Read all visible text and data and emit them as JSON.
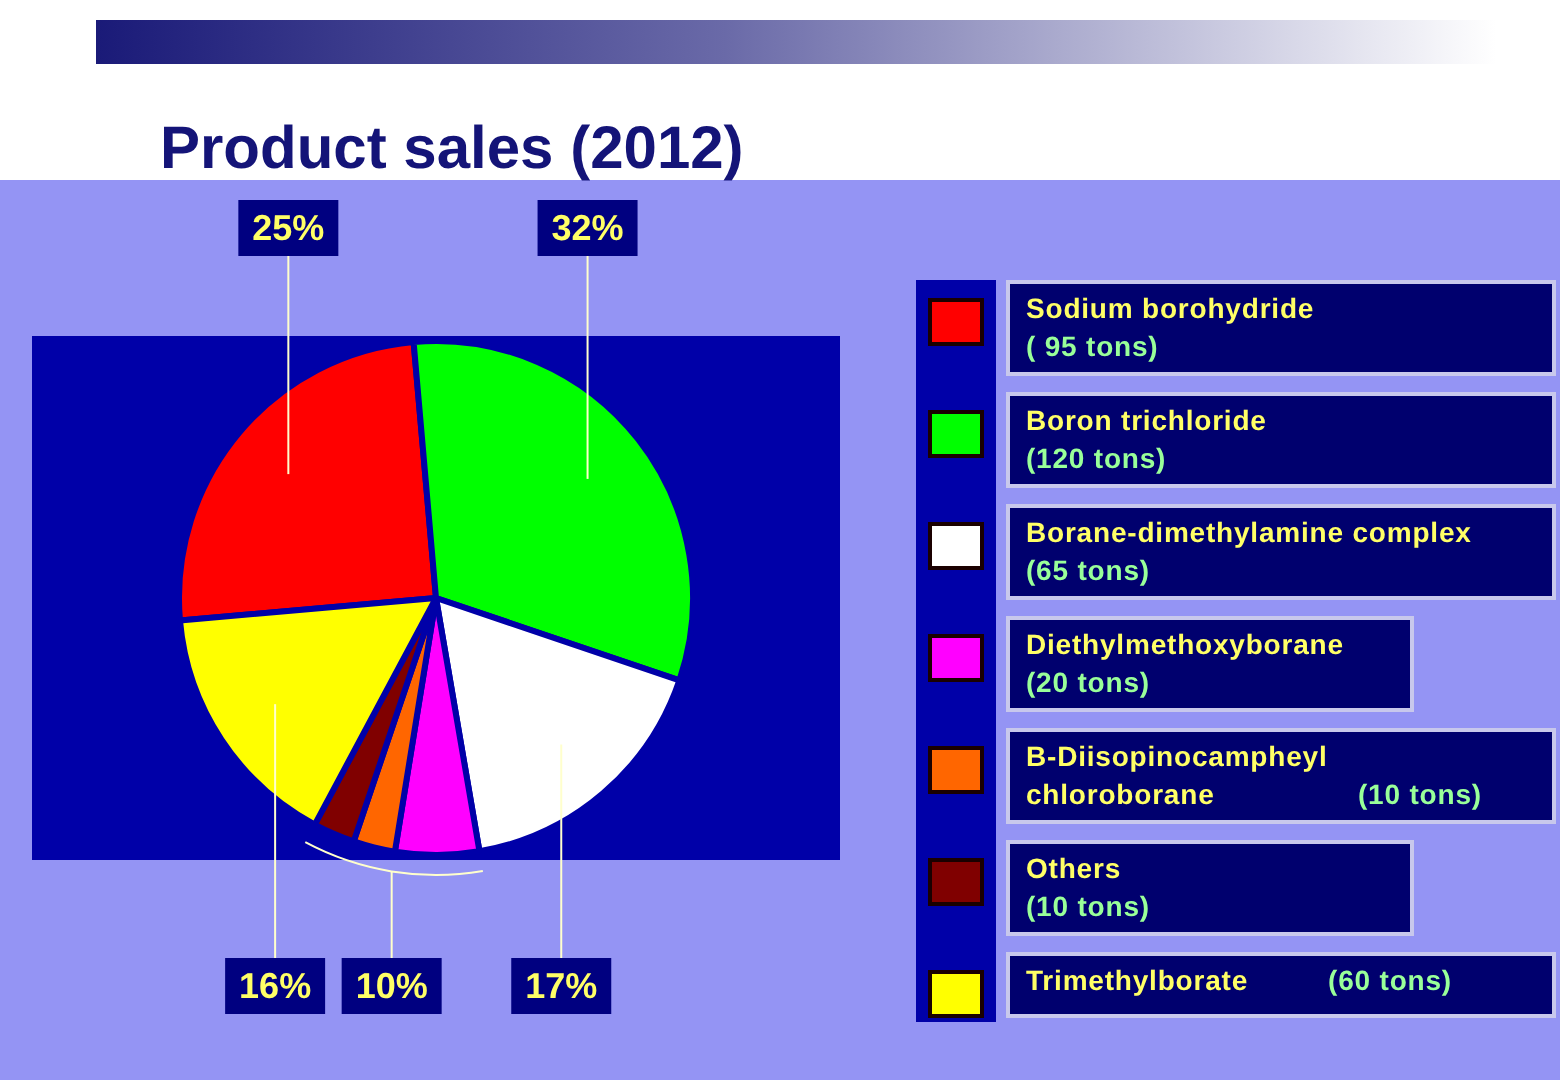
{
  "chart_data": {
    "type": "pie",
    "title": "Product sales (2012)",
    "categories": [
      "Sodium borohydride",
      "Boron trichloride",
      "Borane-dimethylamine complex",
      "Diethylmethoxyborane",
      "B-Diisopinocampheyl chloroborane",
      "Others",
      "Trimethylborate"
    ],
    "values": [
      95,
      120,
      65,
      20,
      10,
      10,
      60
    ],
    "colors": [
      "#ff0000",
      "#00ff00",
      "#ffffff",
      "#ff00ff",
      "#ff6600",
      "#800000",
      "#ffff00"
    ],
    "value_labels": [
      "( 95 tons)",
      "(120 tons)",
      "(65 tons)",
      "(20 tons)",
      "(10 tons)",
      "(10 tons)",
      "(60 tons)"
    ],
    "annotations": [
      {
        "text": "25%",
        "x": "Sodium borohydride"
      },
      {
        "text": "32%",
        "x": "Boron trichloride"
      },
      {
        "text": "17%",
        "x": "Borane-dimethylamine complex"
      },
      {
        "text": "16%",
        "x": "Trimethylborate"
      },
      "10%"
    ],
    "legend": "right"
  }
}
